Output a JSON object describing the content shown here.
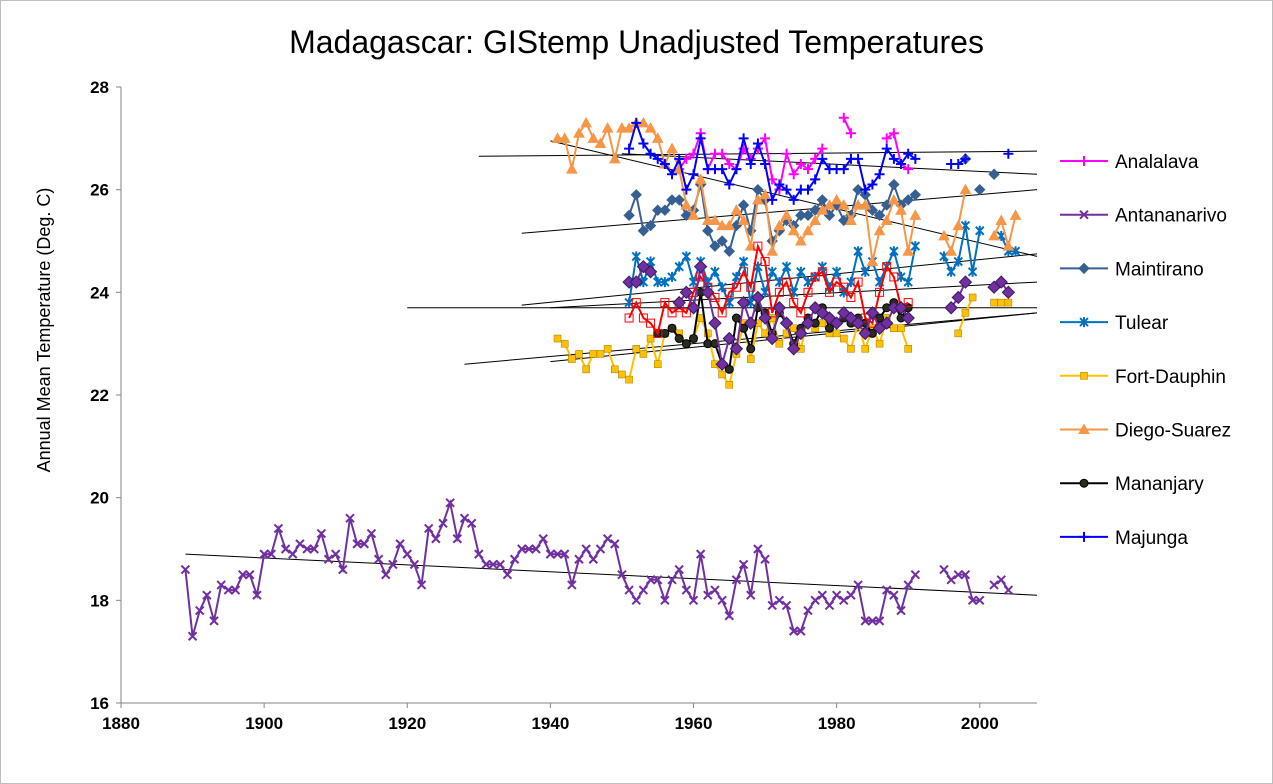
{
  "chart_data": {
    "type": "line",
    "title": "Madagascar: GIStemp Unadjusted  Temperatures",
    "xlabel": "",
    "ylabel": "Annual Mean Temperature (Deg. C)",
    "xlim": [
      1880,
      2008
    ],
    "ylim": [
      16,
      28
    ],
    "x_ticks": [
      1880,
      1900,
      1920,
      1940,
      1960,
      1980,
      2000
    ],
    "y_ticks": [
      16,
      18,
      20,
      22,
      24,
      26,
      28
    ],
    "grid": false,
    "legend_position": "right",
    "series": [
      {
        "name": "Analalava",
        "color": "#ff00ff",
        "marker": "plus",
        "x": [
          1958,
          1959,
          1960,
          1961,
          1962,
          1963,
          1964,
          1965,
          1966,
          1967,
          1968,
          1969,
          1970,
          1971,
          1972,
          1973,
          1974,
          1975,
          1976,
          1977,
          1978,
          1981,
          1982,
          1987,
          1988,
          1989,
          1990
        ],
        "y": [
          26.4,
          26.6,
          26.7,
          27.1,
          26.4,
          26.7,
          26.7,
          26.5,
          26.4,
          26.8,
          26.6,
          26.8,
          27.0,
          26.2,
          26.0,
          26.7,
          26.3,
          26.5,
          26.4,
          26.6,
          26.8,
          27.4,
          27.1,
          27.0,
          27.1,
          26.5,
          26.4
        ]
      },
      {
        "name": "Antananarivo",
        "color": "#7030a0",
        "marker": "x",
        "x": [
          1889,
          1890,
          1891,
          1892,
          1893,
          1894,
          1895,
          1896,
          1897,
          1898,
          1899,
          1900,
          1901,
          1902,
          1903,
          1904,
          1905,
          1906,
          1907,
          1908,
          1909,
          1910,
          1911,
          1912,
          1913,
          1914,
          1915,
          1916,
          1917,
          1918,
          1919,
          1920,
          1921,
          1922,
          1923,
          1924,
          1925,
          1926,
          1927,
          1928,
          1929,
          1930,
          1931,
          1932,
          1933,
          1934,
          1935,
          1936,
          1937,
          1938,
          1939,
          1940,
          1941,
          1942,
          1943,
          1944,
          1945,
          1946,
          1947,
          1948,
          1949,
          1950,
          1951,
          1952,
          1953,
          1954,
          1955,
          1956,
          1957,
          1958,
          1959,
          1960,
          1961,
          1962,
          1963,
          1964,
          1965,
          1966,
          1967,
          1968,
          1969,
          1970,
          1971,
          1972,
          1973,
          1974,
          1975,
          1976,
          1977,
          1978,
          1979,
          1980,
          1981,
          1982,
          1983,
          1984,
          1985,
          1986,
          1987,
          1988,
          1989,
          1990,
          1991,
          1995,
          1996,
          1997,
          1998,
          1999,
          2000,
          2002,
          2003,
          2004
        ],
        "y": [
          18.6,
          17.3,
          17.8,
          18.1,
          17.6,
          18.3,
          18.2,
          18.2,
          18.5,
          18.5,
          18.1,
          18.9,
          18.9,
          19.4,
          19.0,
          18.9,
          19.1,
          19.0,
          19.0,
          19.3,
          18.8,
          18.9,
          18.6,
          19.6,
          19.1,
          19.1,
          19.3,
          18.8,
          18.5,
          18.7,
          19.1,
          18.9,
          18.7,
          18.3,
          19.4,
          19.2,
          19.5,
          19.9,
          19.2,
          19.6,
          19.5,
          18.9,
          18.7,
          18.7,
          18.7,
          18.5,
          18.8,
          19.0,
          19.0,
          19.0,
          19.2,
          18.9,
          18.9,
          18.9,
          18.3,
          18.8,
          19.0,
          18.8,
          19.0,
          19.2,
          19.1,
          18.5,
          18.2,
          18.0,
          18.2,
          18.4,
          18.4,
          18.0,
          18.4,
          18.6,
          18.2,
          18.0,
          18.9,
          18.1,
          18.2,
          18.0,
          17.7,
          18.4,
          18.7,
          18.1,
          19.0,
          18.8,
          17.9,
          18.0,
          17.9,
          17.4,
          17.4,
          17.8,
          18.0,
          18.1,
          17.9,
          18.1,
          18.0,
          18.1,
          18.3,
          17.6,
          17.6,
          17.6,
          18.2,
          18.1,
          17.8,
          18.3,
          18.5,
          18.6,
          18.4,
          18.5,
          18.5,
          18.0,
          18.0,
          18.3,
          18.4,
          18.2
        ]
      },
      {
        "name": "Maintirano",
        "color": "#376092",
        "marker": "diamond",
        "x": [
          1951,
          1952,
          1953,
          1954,
          1955,
          1956,
          1957,
          1958,
          1959,
          1960,
          1961,
          1962,
          1963,
          1964,
          1965,
          1966,
          1967,
          1968,
          1969,
          1970,
          1971,
          1972,
          1973,
          1974,
          1975,
          1976,
          1977,
          1978,
          1979,
          1980,
          1981,
          1982,
          1983,
          1984,
          1985,
          1986,
          1987,
          1988,
          1989,
          1990,
          1991,
          1998,
          2000,
          2002
        ],
        "y": [
          25.5,
          25.9,
          25.2,
          25.3,
          25.6,
          25.6,
          25.8,
          25.8,
          25.5,
          25.6,
          26.1,
          25.2,
          24.9,
          25.0,
          24.8,
          25.3,
          25.7,
          25.2,
          26.0,
          25.8,
          25.0,
          25.2,
          25.4,
          25.3,
          25.5,
          25.5,
          25.6,
          25.8,
          25.5,
          25.7,
          25.4,
          25.5,
          26.0,
          25.9,
          25.6,
          25.5,
          25.7,
          26.1,
          25.7,
          25.8,
          25.9,
          26.6,
          26.0,
          26.3
        ]
      },
      {
        "name": "Tulear",
        "color": "#0070c0",
        "marker": "star",
        "x": [
          1951,
          1952,
          1953,
          1954,
          1955,
          1956,
          1957,
          1958,
          1959,
          1960,
          1961,
          1962,
          1963,
          1964,
          1965,
          1966,
          1967,
          1968,
          1969,
          1970,
          1971,
          1972,
          1973,
          1974,
          1975,
          1976,
          1977,
          1978,
          1979,
          1980,
          1981,
          1982,
          1983,
          1984,
          1985,
          1986,
          1987,
          1988,
          1989,
          1990,
          1991,
          1995,
          1996,
          1997,
          1998,
          1999,
          2000,
          2003,
          2004,
          2005
        ],
        "y": [
          23.8,
          24.7,
          24.2,
          24.6,
          24.2,
          24.2,
          24.3,
          24.5,
          24.7,
          24.2,
          24.6,
          24.2,
          24.4,
          24.1,
          23.8,
          24.3,
          24.6,
          23.8,
          24.5,
          24.0,
          24.4,
          24.2,
          24.5,
          24.0,
          24.4,
          24.2,
          24.3,
          24.5,
          24.1,
          24.4,
          24.0,
          24.2,
          24.8,
          24.4,
          24.6,
          24.2,
          24.5,
          24.8,
          24.3,
          24.2,
          24.9,
          24.7,
          24.4,
          24.6,
          25.3,
          24.4,
          25.2,
          25.1,
          24.8,
          24.8
        ]
      },
      {
        "name": "Fort-Dauphin",
        "color": "#ffc000",
        "marker": "square",
        "x": [
          1941,
          1942,
          1943,
          1944,
          1945,
          1946,
          1947,
          1948,
          1949,
          1950,
          1951,
          1952,
          1953,
          1954,
          1955,
          1956,
          1957,
          1958,
          1959,
          1960,
          1961,
          1962,
          1963,
          1964,
          1965,
          1966,
          1967,
          1968,
          1969,
          1970,
          1971,
          1972,
          1973,
          1974,
          1975,
          1976,
          1977,
          1978,
          1979,
          1980,
          1981,
          1982,
          1983,
          1984,
          1985,
          1986,
          1987,
          1988,
          1989,
          1990,
          1997,
          1998,
          1999,
          2002,
          2003,
          2004
        ],
        "y": [
          23.1,
          23.0,
          22.7,
          22.8,
          22.5,
          22.8,
          22.8,
          22.9,
          22.5,
          22.4,
          22.3,
          22.9,
          22.8,
          23.1,
          22.6,
          23.2,
          23.3,
          23.2,
          23.0,
          23.1,
          23.5,
          23.2,
          22.6,
          22.4,
          22.2,
          22.8,
          23.4,
          22.7,
          23.4,
          23.2,
          23.5,
          23.0,
          23.2,
          23.3,
          22.9,
          23.5,
          23.3,
          23.4,
          23.2,
          23.2,
          23.1,
          22.9,
          23.4,
          22.9,
          23.3,
          23.0,
          23.5,
          23.3,
          23.3,
          22.9,
          23.2,
          23.6,
          23.9,
          23.8,
          23.8,
          23.8
        ]
      },
      {
        "name": "Diego-Suarez",
        "color": "#f79646",
        "marker": "triangle",
        "x": [
          1941,
          1942,
          1943,
          1944,
          1945,
          1946,
          1947,
          1948,
          1949,
          1950,
          1951,
          1952,
          1953,
          1954,
          1955,
          1956,
          1957,
          1958,
          1959,
          1960,
          1961,
          1962,
          1963,
          1964,
          1965,
          1966,
          1967,
          1968,
          1969,
          1970,
          1971,
          1972,
          1973,
          1974,
          1975,
          1976,
          1977,
          1978,
          1979,
          1980,
          1981,
          1982,
          1983,
          1984,
          1985,
          1986,
          1987,
          1988,
          1989,
          1990,
          1991,
          1995,
          1996,
          1997,
          1998,
          2002,
          2003,
          2004,
          2005
        ],
        "y": [
          27.0,
          27.0,
          26.4,
          27.1,
          27.3,
          27.0,
          26.9,
          27.2,
          26.6,
          27.2,
          27.2,
          27.3,
          27.3,
          27.2,
          27.0,
          26.5,
          26.8,
          26.4,
          25.7,
          25.5,
          26.2,
          25.4,
          25.4,
          25.3,
          25.3,
          25.6,
          25.4,
          24.9,
          25.8,
          25.9,
          24.8,
          25.3,
          25.5,
          25.2,
          25.0,
          25.2,
          25.4,
          25.6,
          25.7,
          25.8,
          25.7,
          25.4,
          25.7,
          25.7,
          24.6,
          25.2,
          25.4,
          25.8,
          25.6,
          24.8,
          25.5,
          25.1,
          24.8,
          25.3,
          26.0,
          25.1,
          25.4,
          24.9,
          25.5
        ]
      },
      {
        "name": "Mananjary",
        "color": "#000000",
        "marker": "circle",
        "x": [
          1955,
          1956,
          1957,
          1958,
          1959,
          1960,
          1961,
          1962,
          1963,
          1964,
          1965,
          1966,
          1967,
          1968,
          1969,
          1970,
          1971,
          1972,
          1973,
          1974,
          1975,
          1976,
          1977,
          1978,
          1979,
          1980,
          1981,
          1982,
          1983,
          1984,
          1985,
          1986,
          1987,
          1988,
          1989,
          1990
        ],
        "y": [
          23.2,
          23.2,
          23.3,
          23.1,
          23.0,
          23.1,
          24.0,
          23.0,
          23.0,
          22.6,
          22.5,
          23.5,
          23.3,
          22.9,
          23.7,
          23.6,
          23.2,
          23.6,
          23.4,
          23.0,
          23.3,
          23.5,
          23.4,
          23.7,
          23.3,
          23.4,
          23.5,
          23.4,
          23.5,
          23.4,
          23.2,
          23.5,
          23.7,
          23.8,
          23.5,
          23.7
        ]
      },
      {
        "name": "Majunga",
        "color": "#0000ff",
        "marker": "plus",
        "x": [
          1951,
          1952,
          1953,
          1954,
          1955,
          1956,
          1957,
          1958,
          1959,
          1960,
          1961,
          1962,
          1963,
          1964,
          1965,
          1966,
          1967,
          1968,
          1969,
          1970,
          1971,
          1972,
          1973,
          1974,
          1975,
          1976,
          1977,
          1978,
          1979,
          1980,
          1981,
          1982,
          1983,
          1984,
          1985,
          1986,
          1987,
          1988,
          1989,
          1990,
          1991,
          1996,
          1997,
          1998,
          2004
        ],
        "y": [
          26.8,
          27.3,
          26.9,
          26.7,
          26.6,
          26.5,
          26.3,
          26.6,
          26.0,
          26.3,
          27.0,
          26.4,
          26.4,
          26.4,
          26.1,
          26.4,
          27.0,
          26.5,
          26.9,
          26.5,
          25.8,
          26.1,
          26.0,
          25.8,
          26.0,
          26.0,
          26.2,
          26.6,
          26.4,
          26.4,
          26.4,
          26.6,
          26.6,
          26.0,
          26.1,
          26.3,
          26.8,
          26.6,
          26.5,
          26.7,
          26.6,
          26.5,
          26.5,
          26.6,
          26.7
        ]
      },
      {
        "color": "#ff0000",
        "marker": "open-square",
        "x": [
          1951,
          1952,
          1953,
          1954,
          1955,
          1956,
          1957,
          1958,
          1959,
          1960,
          1961,
          1962,
          1963,
          1964,
          1965,
          1966,
          1967,
          1968,
          1969,
          1970,
          1971,
          1972,
          1973,
          1974,
          1975,
          1976,
          1977,
          1978,
          1979,
          1980,
          1981,
          1982,
          1983,
          1984,
          1985,
          1986,
          1987,
          1988,
          1989,
          1990
        ],
        "y": [
          23.5,
          23.8,
          23.5,
          23.4,
          23.2,
          23.8,
          23.6,
          23.7,
          23.6,
          24.0,
          24.3,
          24.1,
          23.9,
          23.6,
          24.0,
          24.1,
          24.4,
          24.1,
          24.9,
          24.6,
          23.6,
          24.0,
          24.2,
          23.8,
          23.6,
          24.0,
          24.3,
          24.4,
          24.0,
          24.2,
          24.1,
          23.9,
          24.2,
          23.5,
          23.4,
          24.0,
          24.5,
          24.3,
          23.7,
          23.8
        ]
      }
    ],
    "trendlines": [
      {
        "x": [
          1889,
          2008
        ],
        "y": [
          18.9,
          18.1
        ]
      },
      {
        "x": [
          1930,
          2008
        ],
        "y": [
          26.65,
          26.75
        ]
      },
      {
        "x": [
          1940,
          2008
        ],
        "y": [
          26.95,
          24.7
        ]
      },
      {
        "x": [
          1950,
          2008
        ],
        "y": [
          26.7,
          26.3
        ]
      },
      {
        "x": [
          1936,
          2008
        ],
        "y": [
          25.15,
          26.0
        ]
      },
      {
        "x": [
          1936,
          2008
        ],
        "y": [
          23.75,
          24.75
        ]
      },
      {
        "x": [
          1920,
          2008
        ],
        "y": [
          23.7,
          23.7
        ]
      },
      {
        "x": [
          1940,
          2008
        ],
        "y": [
          23.7,
          24.2
        ]
      },
      {
        "x": [
          1928,
          2008
        ],
        "y": [
          22.6,
          23.6
        ]
      },
      {
        "x": [
          1940,
          2008
        ],
        "y": [
          22.65,
          23.6
        ]
      }
    ]
  }
}
